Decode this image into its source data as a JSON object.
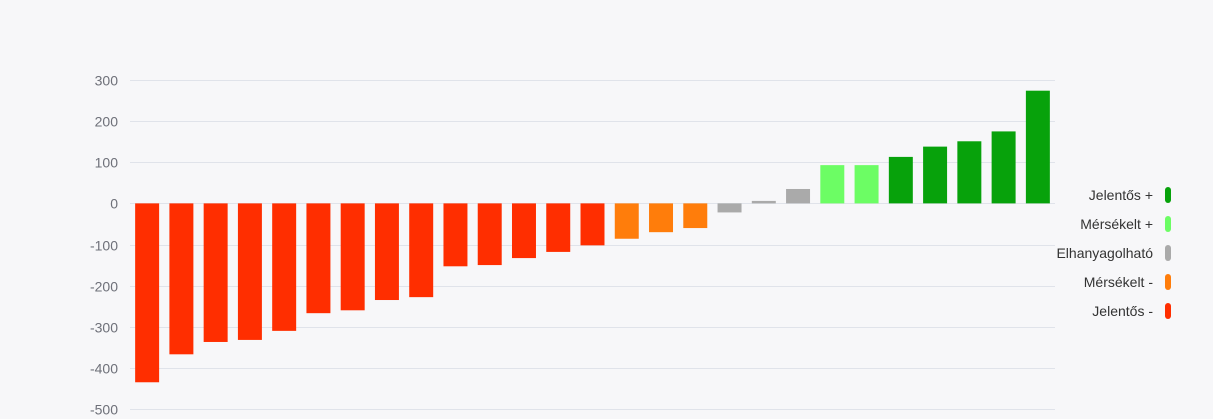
{
  "chart_data": {
    "type": "bar",
    "ylim": [
      -500,
      300
    ],
    "yticks": [
      300,
      200,
      100,
      0,
      -100,
      -200,
      -300,
      -400,
      -500
    ],
    "ytick_labels": [
      "300",
      "200",
      "100",
      "0",
      "-100",
      "-200",
      "-300",
      "-400",
      "-500"
    ],
    "grid": true,
    "legend_position": "right",
    "values": [
      -435,
      -367,
      -337,
      -332,
      -310,
      -267,
      -260,
      -235,
      -228,
      -153,
      -150,
      -133,
      -118,
      -102,
      -86,
      -70,
      -60,
      -22,
      6,
      35,
      93,
      93,
      113,
      138,
      151,
      175,
      274
    ],
    "classes": [
      "Jelentős -",
      "Jelentős -",
      "Jelentős -",
      "Jelentős -",
      "Jelentős -",
      "Jelentős -",
      "Jelentős -",
      "Jelentős -",
      "Jelentős -",
      "Jelentős -",
      "Jelentős -",
      "Jelentős -",
      "Jelentős -",
      "Jelentős -",
      "Mérsékelt -",
      "Mérsékelt -",
      "Mérsékelt -",
      "Elhanyagolható",
      "Elhanyagolható",
      "Elhanyagolható",
      "Mérsékelt +",
      "Mérsékelt +",
      "Jelentős +",
      "Jelentős +",
      "Jelentős +",
      "Jelentős +",
      "Jelentős +"
    ],
    "legend": [
      {
        "label": "Jelentős +",
        "color": "#07a20b"
      },
      {
        "label": "Mérsékelt +",
        "color": "#6cfd64"
      },
      {
        "label": "Elhanyagolható",
        "color": "#aaaaaa"
      },
      {
        "label": "Mérsékelt -",
        "color": "#ff7d0b"
      },
      {
        "label": "Jelentős -",
        "color": "#ff2e00"
      }
    ]
  }
}
